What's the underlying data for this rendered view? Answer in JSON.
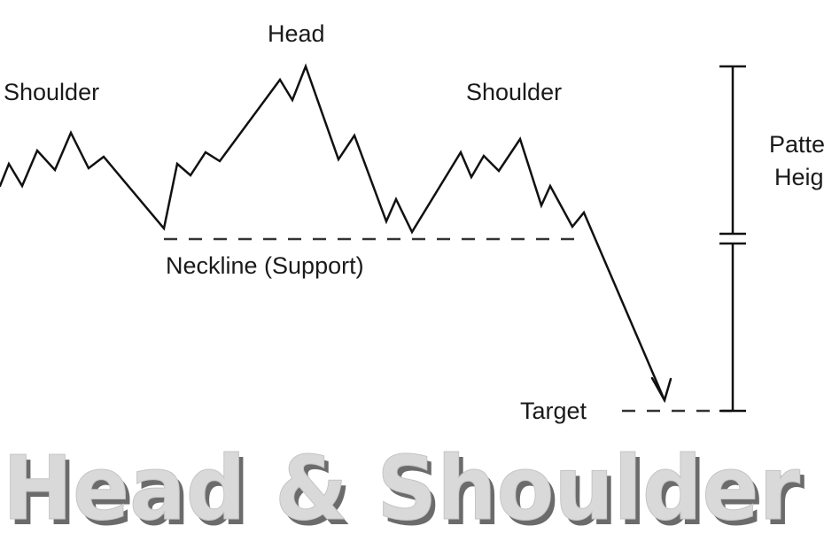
{
  "labels": {
    "left_shoulder": "Shoulder",
    "head": "Head",
    "right_shoulder": "Shoulder",
    "neckline": "Neckline (Support)",
    "target": "Target",
    "pattern_height_line1": "Pattern",
    "pattern_height_line2": "Height"
  },
  "title": "Head & Shoulder",
  "colors": {
    "line": "#111111",
    "dash": "#333333",
    "title_fill": "#d9d9d9",
    "title_shadow": "#6b6b6b"
  }
}
